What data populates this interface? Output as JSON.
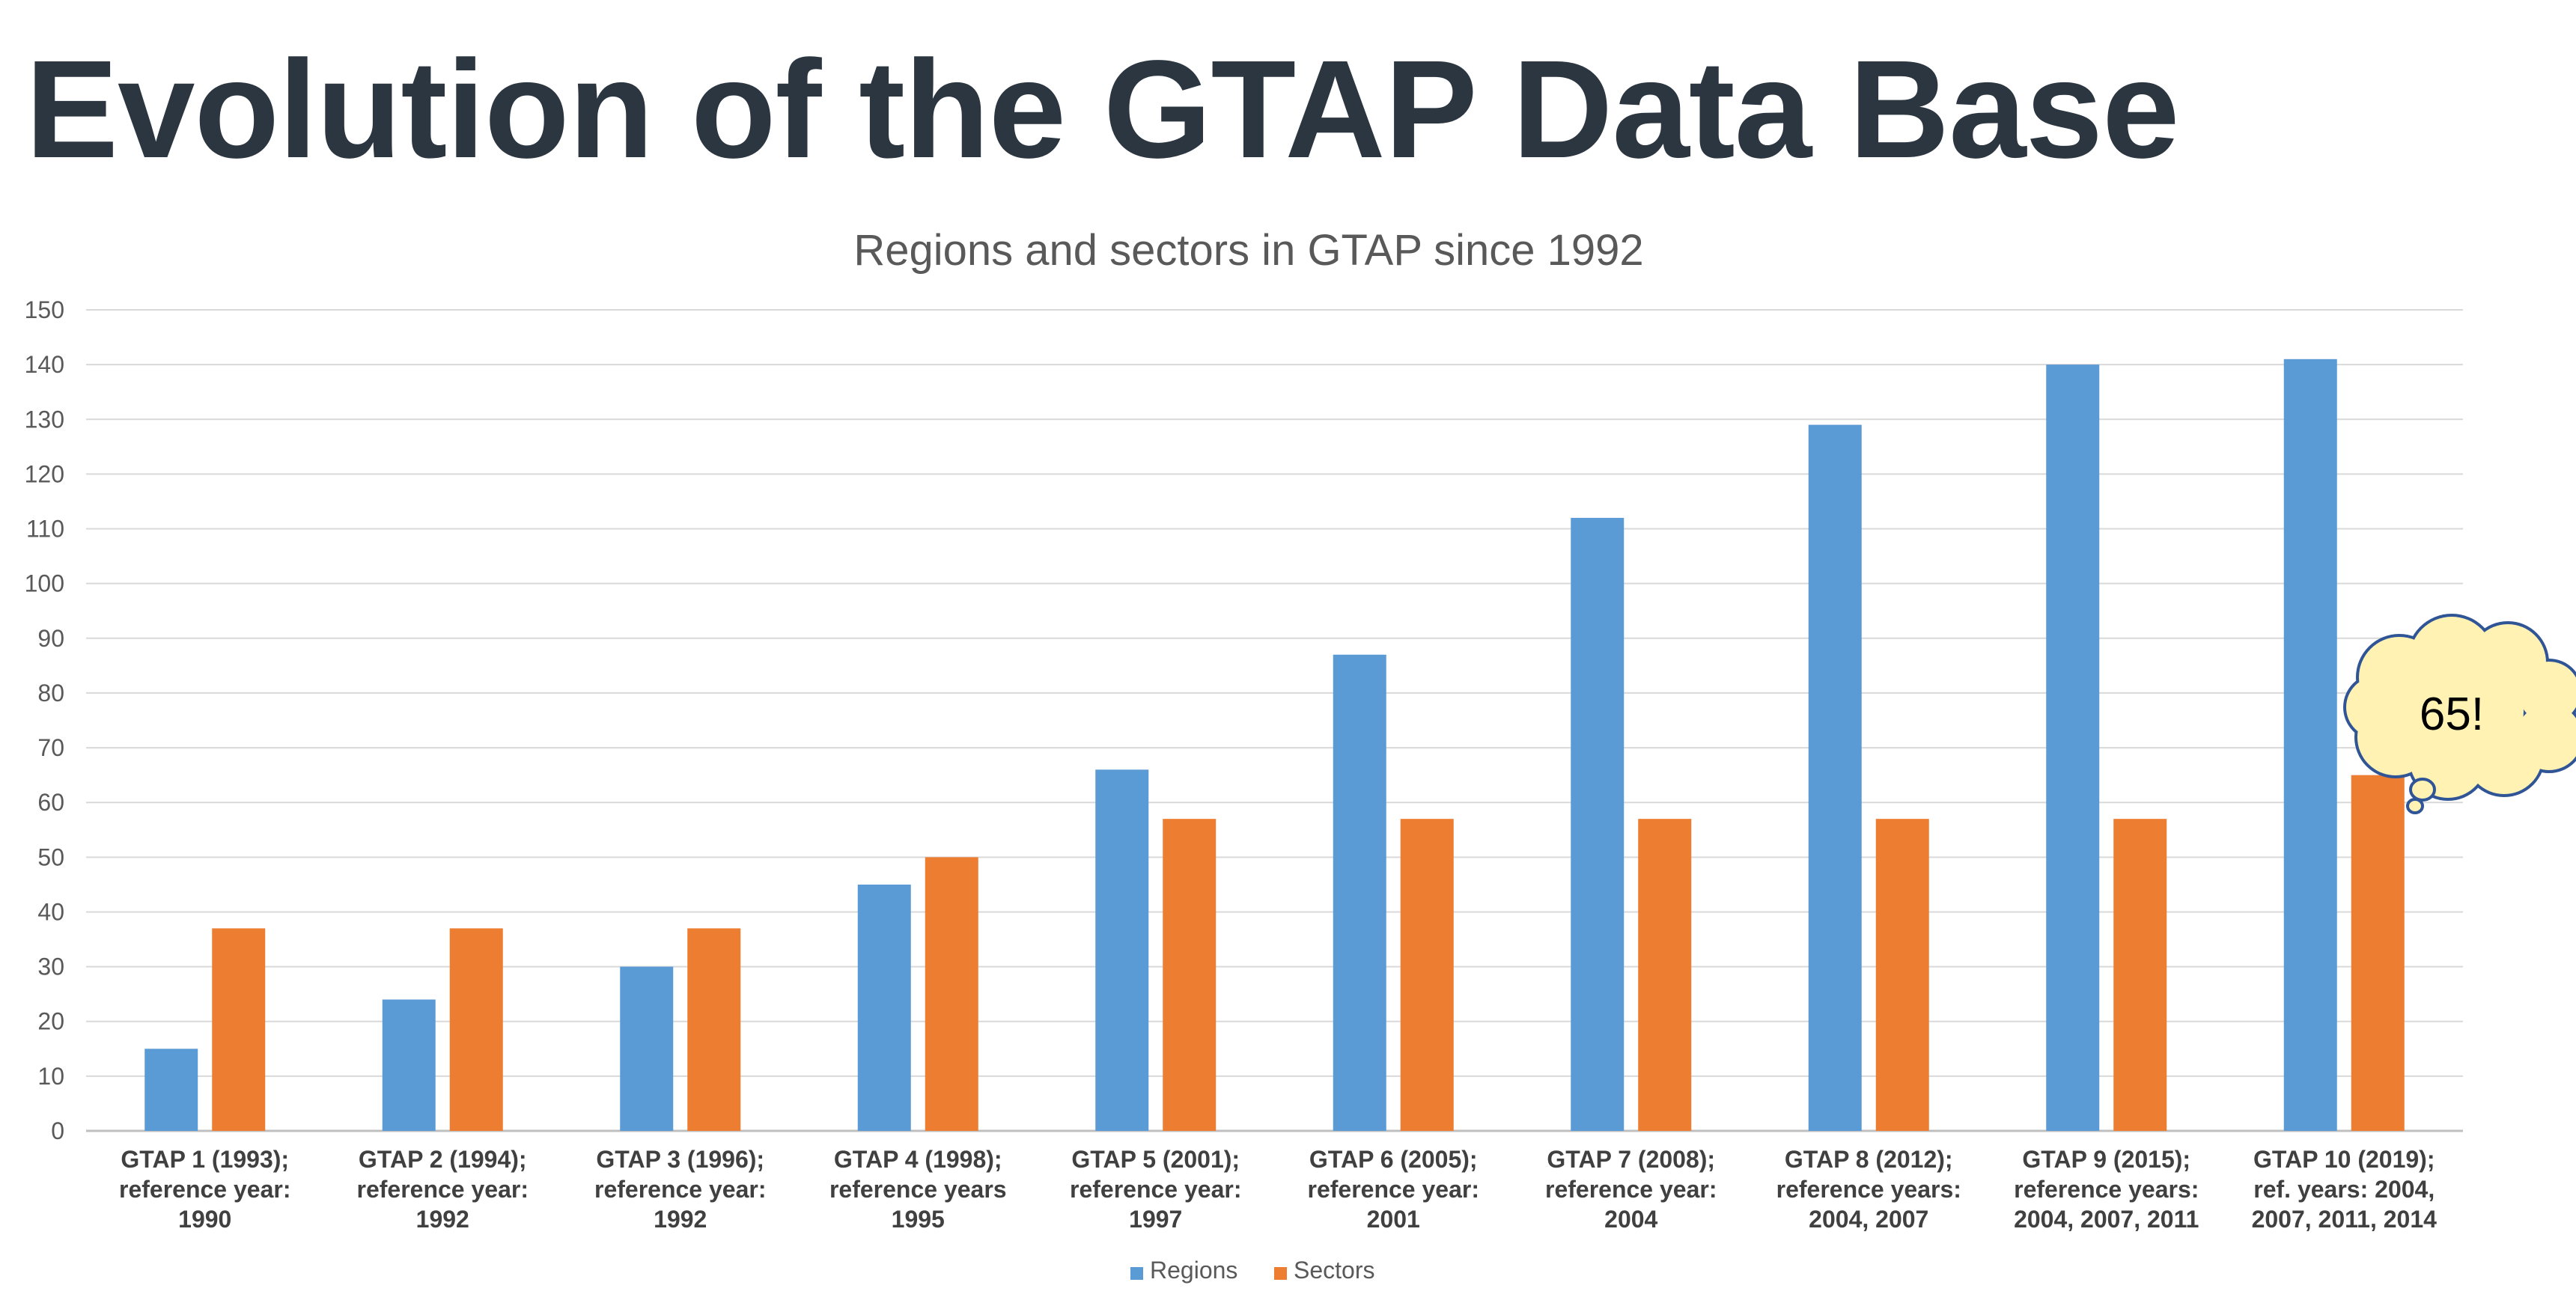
{
  "slide": {
    "title": "Evolution of the GTAP Data Base"
  },
  "chart_data": {
    "type": "bar",
    "title": "Regions and sectors in GTAP since 1992",
    "xlabel": "",
    "ylabel": "",
    "ylim": [
      0,
      150
    ],
    "yticks": [
      0,
      10,
      20,
      30,
      40,
      50,
      60,
      70,
      80,
      90,
      100,
      110,
      120,
      130,
      140,
      150
    ],
    "grid": true,
    "legend_position": "bottom",
    "categories": [
      [
        "GTAP 1 (1993);",
        "reference year:",
        "1990"
      ],
      [
        "GTAP 2 (1994);",
        "reference year:",
        "1992"
      ],
      [
        "GTAP 3 (1996);",
        "reference year:",
        "1992"
      ],
      [
        "GTAP 4 (1998);",
        "reference years",
        "1995"
      ],
      [
        "GTAP 5 (2001);",
        "reference year:",
        "1997"
      ],
      [
        "GTAP 6 (2005);",
        "reference year:",
        "2001"
      ],
      [
        "GTAP 7 (2008);",
        "reference year:",
        "2004"
      ],
      [
        "GTAP 8 (2012);",
        "reference years:",
        "2004, 2007"
      ],
      [
        "GTAP 9 (2015);",
        "reference years:",
        "2004, 2007, 2011"
      ],
      [
        "GTAP 10 (2019);",
        "ref. years: 2004,",
        "2007, 2011, 2014"
      ]
    ],
    "series": [
      {
        "name": "Regions",
        "color": "#5b9bd5",
        "values": [
          15,
          24,
          30,
          45,
          66,
          87,
          112,
          129,
          140,
          141
        ]
      },
      {
        "name": "Sectors",
        "color": "#ed7d31",
        "values": [
          37,
          37,
          37,
          50,
          57,
          57,
          57,
          57,
          57,
          65
        ]
      }
    ],
    "annotation": {
      "text": "65!",
      "shape": "thought-cloud",
      "fill": "#fff2b3",
      "stroke": "#2f5597",
      "target_category_index": 9,
      "target_series": "Sectors"
    }
  }
}
